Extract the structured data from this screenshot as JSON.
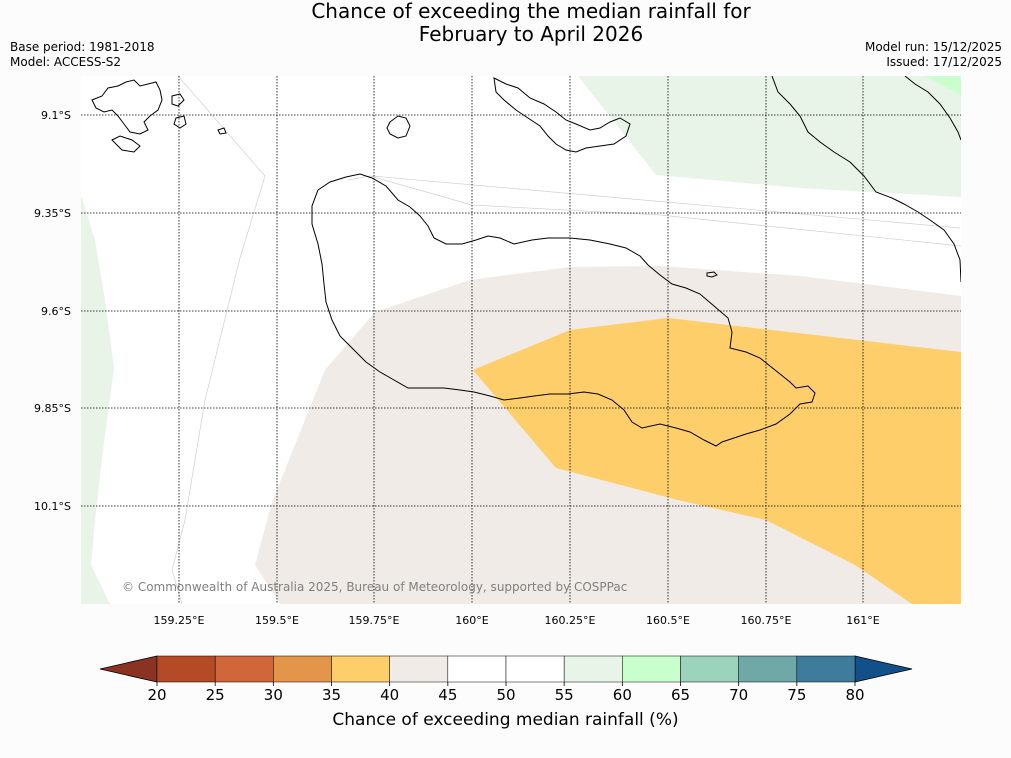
{
  "title": {
    "line1": "Chance of exceeding the median rainfall for",
    "line2": "February to April 2026"
  },
  "meta": {
    "base_period": "Base period: 1981-2018",
    "model": "Model: ACCESS-S2",
    "model_run": "Model run: 15/12/2025",
    "issued": "Issued: 17/12/2025"
  },
  "map": {
    "lat_labels": [
      "9.1°S",
      "9.35°S",
      "9.6°S",
      "9.85°S",
      "10.1°S"
    ],
    "lon_labels": [
      "159.25°E",
      "159.5°E",
      "159.75°E",
      "160°E",
      "160.25°E",
      "160.5°E",
      "160.75°E",
      "161°E"
    ],
    "copyright": "© Commonwealth of Australia 2025, Bureau of Meteorology, supported by COSPPac"
  },
  "colorbar": {
    "ticks": [
      "20",
      "25",
      "30",
      "35",
      "40",
      "45",
      "50",
      "55",
      "60",
      "65",
      "70",
      "75",
      "80"
    ],
    "colors": [
      "#b44a26",
      "#d0663a",
      "#e3954a",
      "#fece6a",
      "#f0ebe6",
      "#ffffff",
      "#ffffff",
      "#e8f4e8",
      "#c9ffcc",
      "#9bd3bd",
      "#70a8a8",
      "#3f7b9b"
    ],
    "under_color": "#8b3322",
    "over_color": "#12508a",
    "label": "Chance of exceeding median rainfall (%)"
  },
  "colors": {
    "orange_35_40": "#fece6a",
    "beige_40_45": "#f0ebe6",
    "green_55_60": "#e8f4e8",
    "green_60_65": "#c9ffcc"
  }
}
